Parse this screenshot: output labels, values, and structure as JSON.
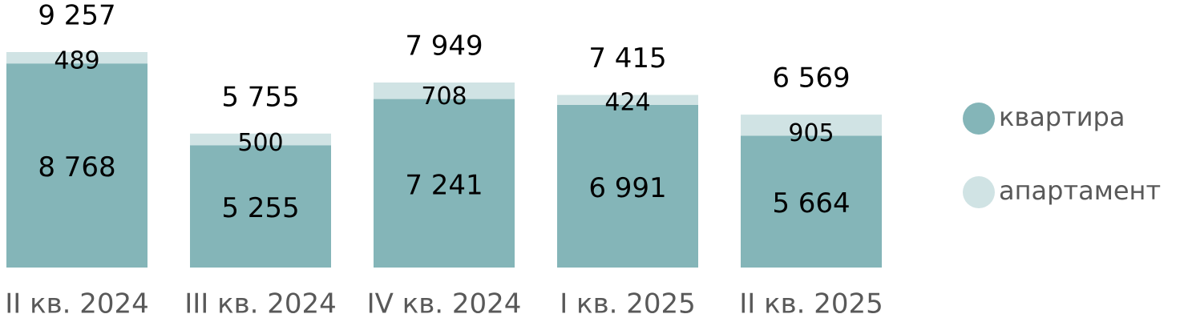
{
  "chart_data": {
    "type": "stacked_bar",
    "categories": [
      "II кв. 2024",
      "III кв. 2024",
      "IV кв. 2024",
      "I кв. 2025",
      "II кв. 2025"
    ],
    "series": [
      {
        "name": "квартира",
        "color": "#84b5b8",
        "values": [
          8768,
          5255,
          7241,
          6991,
          5664
        ],
        "value_labels": [
          "8 768",
          "5 255",
          "7 241",
          "6 991",
          "5 664"
        ]
      },
      {
        "name": "апартамент",
        "color": "#d0e3e4",
        "values": [
          489,
          500,
          708,
          424,
          905
        ],
        "value_labels": [
          "489",
          "500",
          "708",
          "424",
          "905"
        ]
      }
    ],
    "totals": [
      9257,
      5755,
      7949,
      7415,
      6569
    ],
    "total_labels": [
      "9 257",
      "5 755",
      "7 949",
      "7 415",
      "6 569"
    ],
    "legend": "right"
  }
}
